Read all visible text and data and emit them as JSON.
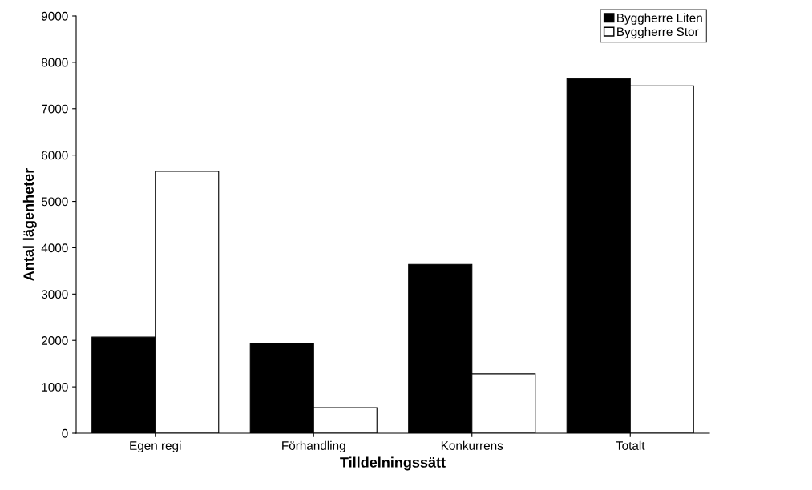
{
  "chart_data": {
    "type": "bar",
    "xlabel": "Tilldelningssätt",
    "ylabel": "Antal lägenheter",
    "categories": [
      "Egen regi",
      "Förhandling",
      "Konkurrens",
      "Totalt"
    ],
    "series": [
      {
        "name": "Byggherre Liten",
        "color": "#000000",
        "values": [
          2070,
          1940,
          3640,
          7650
        ]
      },
      {
        "name": "Byggherre Stor",
        "color": "#ffffff",
        "values": [
          5650,
          550,
          1280,
          7490
        ]
      }
    ],
    "ylim": [
      0,
      9000
    ],
    "yticks": [
      0,
      1000,
      2000,
      3000,
      4000,
      5000,
      6000,
      7000,
      8000,
      9000
    ],
    "grid": false,
    "legend": "top right"
  }
}
